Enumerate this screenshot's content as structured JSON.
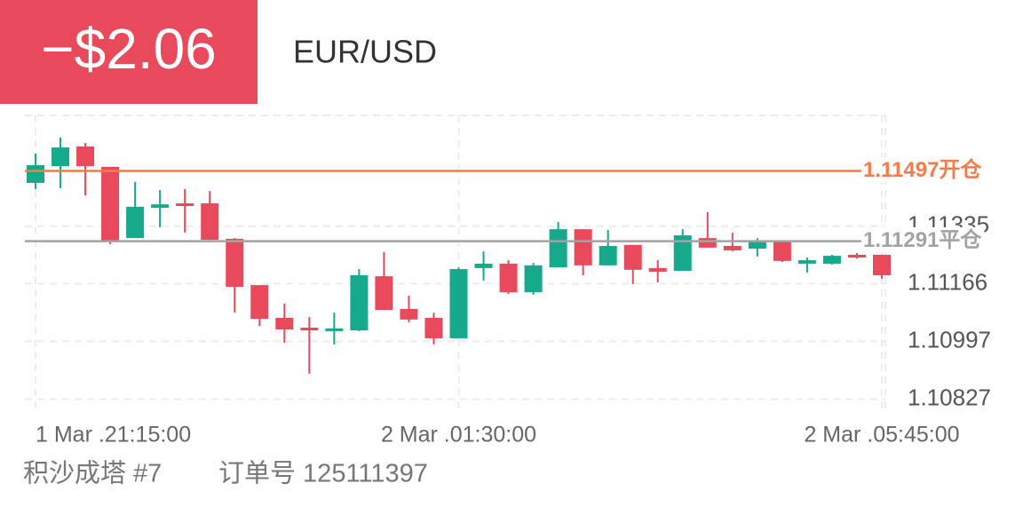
{
  "header": {
    "pnl": "−$2.06",
    "symbol": "EUR/USD"
  },
  "chart_data": {
    "type": "candlestick",
    "categories": [
      "1 Mar .21:15:00",
      null,
      null,
      null,
      null,
      null,
      null,
      null,
      null,
      null,
      null,
      null,
      null,
      null,
      null,
      null,
      null,
      "2 Mar .01:30:00",
      null,
      null,
      null,
      null,
      null,
      null,
      null,
      null,
      null,
      null,
      null,
      null,
      null,
      null,
      null,
      null,
      "2 Mar .05:45:00"
    ],
    "open": [
      1.11462,
      1.11511,
      1.11569,
      1.11509,
      1.113,
      1.11389,
      1.11402,
      1.11402,
      1.11298,
      1.11162,
      1.11066,
      1.11037,
      1.11027,
      1.11029,
      1.11188,
      1.11092,
      1.11066,
      1.11006,
      1.11212,
      1.11225,
      1.11141,
      1.11214,
      1.11326,
      1.1122,
      1.1128,
      1.11212,
      1.11204,
      1.113,
      1.11277,
      1.11269,
      1.11293,
      1.11225,
      1.11225,
      1.11251,
      1.11251
    ],
    "high": [
      1.11548,
      1.11595,
      1.11579,
      1.11509,
      1.11465,
      1.11441,
      1.11444,
      1.11438,
      1.113,
      1.11162,
      1.11108,
      1.11068,
      1.11081,
      1.11209,
      1.11259,
      1.11131,
      1.11081,
      1.11214,
      1.11261,
      1.11235,
      1.11227,
      1.11347,
      1.11326,
      1.11324,
      1.1128,
      1.11235,
      1.11326,
      1.11376,
      1.11316,
      1.113,
      1.11293,
      1.11243,
      1.11251,
      1.11256,
      1.11251
    ],
    "low": [
      1.11444,
      1.11446,
      1.11425,
      1.11282,
      1.113,
      1.11332,
      1.11316,
      1.11295,
      1.11081,
      1.11042,
      1.10993,
      1.10902,
      1.10988,
      1.11027,
      1.11089,
      1.11053,
      1.10988,
      1.11006,
      1.11175,
      1.11136,
      1.11134,
      1.11214,
      1.11191,
      1.1122,
      1.11165,
      1.1117,
      1.11204,
      1.11272,
      1.11261,
      1.11246,
      1.1123,
      1.11199,
      1.11222,
      1.1124,
      1.11181
    ],
    "close": [
      1.11514,
      1.11566,
      1.11511,
      1.11293,
      1.11392,
      1.11399,
      1.11394,
      1.11295,
      1.11157,
      1.11063,
      1.11032,
      1.11029,
      1.11035,
      1.11191,
      1.11089,
      1.11061,
      1.11006,
      1.11209,
      1.11225,
      1.11141,
      1.1122,
      1.11326,
      1.1122,
      1.11277,
      1.11207,
      1.11201,
      1.11308,
      1.11272,
      1.11264,
      1.11293,
      1.11233,
      1.11235,
      1.11248,
      1.11243,
      1.11191
    ],
    "up_color": "#16a98c",
    "down_color": "#e8495b",
    "ylim": [
      1.108,
      1.1166
    ],
    "yticks": [
      1.10827,
      1.10997,
      1.11166,
      1.11335
    ],
    "grid": true,
    "hlines": [
      {
        "value": 1.11497,
        "label": "1.11497开仓",
        "color": "#f47c4a"
      },
      {
        "value": 1.11291,
        "label": "1.11291平仓",
        "color": "#a3a3a3"
      }
    ]
  },
  "footer": {
    "strategy": "积沙成塔 #7",
    "order": "订单号 125111397"
  }
}
